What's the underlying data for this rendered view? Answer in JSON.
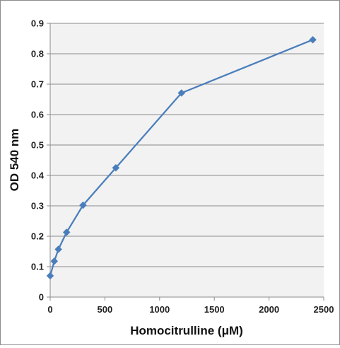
{
  "chart_data": {
    "type": "line",
    "title": "",
    "xlabel": "Homocitrulline (μM)",
    "ylabel": "OD 540 nm",
    "xlim": [
      0,
      2500
    ],
    "ylim": [
      0,
      0.9
    ],
    "x_ticks": [
      0,
      500,
      1000,
      1500,
      2000,
      2500
    ],
    "y_ticks": [
      "0",
      "0.1",
      "0.2",
      "0.3",
      "0.4",
      "0.5",
      "0.6",
      "0.7",
      "0.8",
      "0.9"
    ],
    "y_tick_values": [
      0,
      0.1,
      0.2,
      0.3,
      0.4,
      0.5,
      0.6,
      0.7,
      0.8,
      0.9
    ],
    "grid": "horizontal",
    "plot_background": "#f2f2f2",
    "series": [
      {
        "color": "#4a7ebb",
        "marker": "diamond",
        "x": [
          0,
          37.5,
          75,
          150,
          300,
          600,
          1200,
          2400
        ],
        "y": [
          0.07,
          0.118,
          0.157,
          0.213,
          0.302,
          0.425,
          0.671,
          0.846
        ]
      }
    ]
  }
}
